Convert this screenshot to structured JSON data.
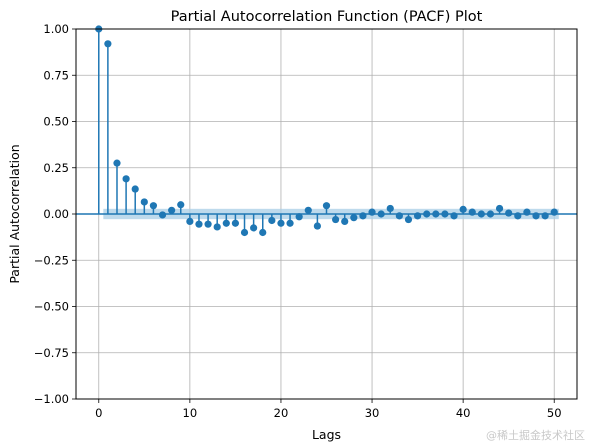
{
  "chart_data": {
    "type": "scatter",
    "subtype": "stem",
    "title": "Partial Autocorrelation Function (PACF) Plot",
    "xlabel": "Lags",
    "ylabel": "Partial Autocorrelation",
    "xlim": [
      -2.5,
      52.5
    ],
    "ylim": [
      -1.0,
      1.0
    ],
    "xticks": [
      0,
      10,
      20,
      30,
      40,
      50
    ],
    "yticks": [
      -1.0,
      -0.75,
      -0.5,
      -0.25,
      0.0,
      0.25,
      0.5,
      0.75,
      1.0
    ],
    "xtick_labels": [
      "0",
      "10",
      "20",
      "30",
      "40",
      "50"
    ],
    "ytick_labels": [
      "−1.00",
      "−0.75",
      "−0.50",
      "−0.25",
      "0.00",
      "0.25",
      "0.50",
      "0.75",
      "1.00"
    ],
    "grid": true,
    "confidence_band": [
      -0.028,
      0.028
    ],
    "series": [
      {
        "x": [
          0,
          1,
          2,
          3,
          4,
          5,
          6,
          7,
          8,
          9,
          10,
          11,
          12,
          13,
          14,
          15,
          16,
          17,
          18,
          19,
          20,
          21,
          22,
          23,
          24,
          25,
          26,
          27,
          28,
          29,
          30,
          31,
          32,
          33,
          34,
          35,
          36,
          37,
          38,
          39,
          40,
          41,
          42,
          43,
          44,
          45,
          46,
          47,
          48,
          49,
          50
        ],
        "values": [
          1.0,
          0.92,
          0.275,
          0.19,
          0.135,
          0.065,
          0.045,
          -0.005,
          0.02,
          0.05,
          -0.04,
          -0.055,
          -0.055,
          -0.07,
          -0.05,
          -0.05,
          -0.1,
          -0.075,
          -0.1,
          -0.035,
          -0.05,
          -0.05,
          -0.015,
          0.02,
          -0.065,
          0.045,
          -0.03,
          -0.04,
          -0.02,
          -0.01,
          0.01,
          0.0,
          0.03,
          -0.01,
          -0.03,
          -0.01,
          0.0,
          0.0,
          0.0,
          -0.01,
          0.025,
          0.01,
          0.0,
          0.0,
          0.03,
          0.005,
          -0.01,
          0.01,
          -0.01,
          -0.01,
          0.01
        ]
      }
    ],
    "colors": {
      "marker": "#1f77b4",
      "band": "#a8cde6",
      "zero_line": "#1f77b4",
      "grid": "#b0b0b0"
    }
  },
  "watermark": "@稀土掘金技术社区"
}
